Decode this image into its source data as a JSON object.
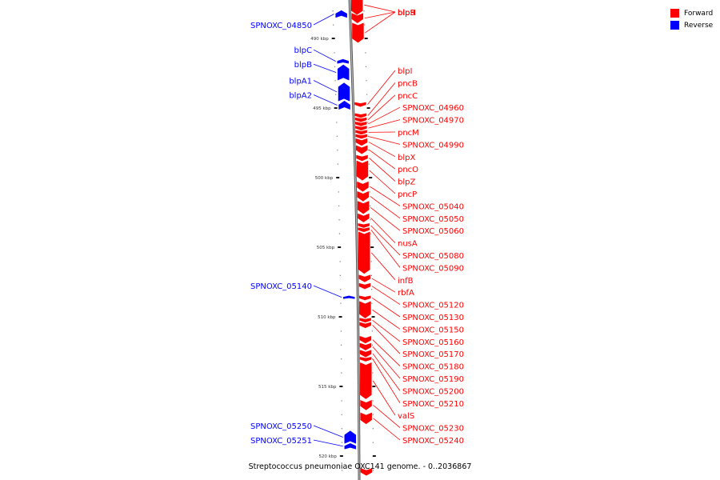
{
  "caption": "Streptococcus pneumoniae OXC141 genome. - 0..2036867",
  "legend": [
    {
      "label": "Forward",
      "color": "#ff0000"
    },
    {
      "label": "Reverse",
      "color": "#0000ff"
    }
  ],
  "colors": {
    "forward": "#ff0000",
    "reverse": "#0000ff",
    "axis": "#888888"
  },
  "axis": {
    "start_kbp": 486.9,
    "end_kbp": 521.4,
    "ticks": [
      {
        "kbp": 490,
        "label": "490 kbp"
      },
      {
        "kbp": 495,
        "label": "495 kbp"
      },
      {
        "kbp": 500,
        "label": "500 kbp"
      },
      {
        "kbp": 505,
        "label": "505 kbp"
      },
      {
        "kbp": 510,
        "label": "510 kbp"
      },
      {
        "kbp": 515,
        "label": "515 kbp"
      },
      {
        "kbp": 520,
        "label": "520 kbp"
      }
    ]
  },
  "genes": [
    {
      "name": "blpS",
      "strand": "forward",
      "start_kbp": 486.9,
      "end_kbp": 488.3
    },
    {
      "name": "blpR",
      "strand": "forward",
      "start_kbp": 488.2,
      "end_kbp": 488.9
    },
    {
      "name": "blpH",
      "strand": "forward",
      "start_kbp": 488.9,
      "end_kbp": 490.3
    },
    {
      "name": "SPNOXC_04850",
      "strand": "reverse",
      "start_kbp": 488.0,
      "end_kbp": 488.5
    },
    {
      "name": "blpI",
      "strand": "forward",
      "start_kbp": 494.6,
      "end_kbp": 494.9
    },
    {
      "name": "blpC",
      "strand": "reverse",
      "start_kbp": 491.5,
      "end_kbp": 491.8
    },
    {
      "name": "blpB",
      "strand": "reverse",
      "start_kbp": 491.9,
      "end_kbp": 493.0
    },
    {
      "name": "blpA1",
      "strand": "reverse",
      "start_kbp": 493.2,
      "end_kbp": 494.5
    },
    {
      "name": "blpA2",
      "strand": "reverse",
      "start_kbp": 494.5,
      "end_kbp": 495.1
    },
    {
      "name": "pncB",
      "strand": "forward",
      "start_kbp": 495.4,
      "end_kbp": 495.7
    },
    {
      "name": "pncC",
      "strand": "forward",
      "start_kbp": 495.7,
      "end_kbp": 496.0
    },
    {
      "name": "SPNOXC_04960",
      "strand": "forward",
      "start_kbp": 496.0,
      "end_kbp": 496.3
    },
    {
      "name": "SPNOXC_04970",
      "strand": "forward",
      "start_kbp": 496.3,
      "end_kbp": 496.6
    },
    {
      "name": "pncM",
      "strand": "forward",
      "start_kbp": 496.6,
      "end_kbp": 496.9
    },
    {
      "name": "SPNOXC_04990",
      "strand": "forward",
      "start_kbp": 496.9,
      "end_kbp": 497.2
    },
    {
      "name": "blpX",
      "strand": "forward",
      "start_kbp": 497.2,
      "end_kbp": 497.7
    },
    {
      "name": "pncO",
      "strand": "forward",
      "start_kbp": 497.7,
      "end_kbp": 498.3
    },
    {
      "name": "blpZ",
      "strand": "forward",
      "start_kbp": 498.4,
      "end_kbp": 498.8
    },
    {
      "name": "pncP",
      "strand": "forward",
      "start_kbp": 498.8,
      "end_kbp": 500.2
    },
    {
      "name": "SPNOXC_05040",
      "strand": "forward",
      "start_kbp": 500.3,
      "end_kbp": 501.0
    },
    {
      "name": "SPNOXC_05050",
      "strand": "forward",
      "start_kbp": 501.0,
      "end_kbp": 501.7
    },
    {
      "name": "SPNOXC_05060",
      "strand": "forward",
      "start_kbp": 501.7,
      "end_kbp": 502.6
    },
    {
      "name": "nusA",
      "strand": "forward",
      "start_kbp": 502.6,
      "end_kbp": 503.2
    },
    {
      "name": "SPNOXC_05080",
      "strand": "forward",
      "start_kbp": 503.3,
      "end_kbp": 503.6
    },
    {
      "name": "SPNOXC_05090",
      "strand": "forward",
      "start_kbp": 503.6,
      "end_kbp": 503.9
    },
    {
      "name": "infB",
      "strand": "forward",
      "start_kbp": 503.9,
      "end_kbp": 506.9
    },
    {
      "name": "rbfA",
      "strand": "forward",
      "start_kbp": 507.0,
      "end_kbp": 507.5
    },
    {
      "name": "SPNOXC_05120",
      "strand": "forward",
      "start_kbp": 507.6,
      "end_kbp": 508.0
    },
    {
      "name": "SPNOXC_05140",
      "strand": "reverse",
      "start_kbp": 508.5,
      "end_kbp": 508.7
    },
    {
      "name": "SPNOXC_05130",
      "strand": "forward",
      "start_kbp": 508.5,
      "end_kbp": 508.8
    },
    {
      "name": "SPNOXC_05150",
      "strand": "forward",
      "start_kbp": 508.9,
      "end_kbp": 510.1
    },
    {
      "name": "SPNOXC_05160",
      "strand": "forward",
      "start_kbp": 510.1,
      "end_kbp": 510.4
    },
    {
      "name": "SPNOXC_05170",
      "strand": "forward",
      "start_kbp": 510.4,
      "end_kbp": 510.8
    },
    {
      "name": "SPNOXC_05180",
      "strand": "forward",
      "start_kbp": 511.4,
      "end_kbp": 511.9
    },
    {
      "name": "SPNOXC_05190",
      "strand": "forward",
      "start_kbp": 511.9,
      "end_kbp": 512.4
    },
    {
      "name": "SPNOXC_05200",
      "strand": "forward",
      "start_kbp": 512.4,
      "end_kbp": 512.9
    },
    {
      "name": "SPNOXC_05210",
      "strand": "forward",
      "start_kbp": 512.9,
      "end_kbp": 513.2
    },
    {
      "name": "valS",
      "strand": "forward",
      "start_kbp": 513.3,
      "end_kbp": 515.9
    },
    {
      "name": "SPNOXC_05230",
      "strand": "forward",
      "start_kbp": 516.0,
      "end_kbp": 516.7
    },
    {
      "name": "SPNOXC_05240",
      "strand": "forward",
      "start_kbp": 516.9,
      "end_kbp": 517.7
    },
    {
      "name": "SPNOXC_05250",
      "strand": "reverse",
      "start_kbp": 518.2,
      "end_kbp": 519.1
    },
    {
      "name": "SPNOXC_05251",
      "strand": "reverse",
      "start_kbp": 519.1,
      "end_kbp": 519.5
    },
    {
      "name": "",
      "strand": "forward",
      "start_kbp": 520.9,
      "end_kbp": 521.4
    }
  ]
}
